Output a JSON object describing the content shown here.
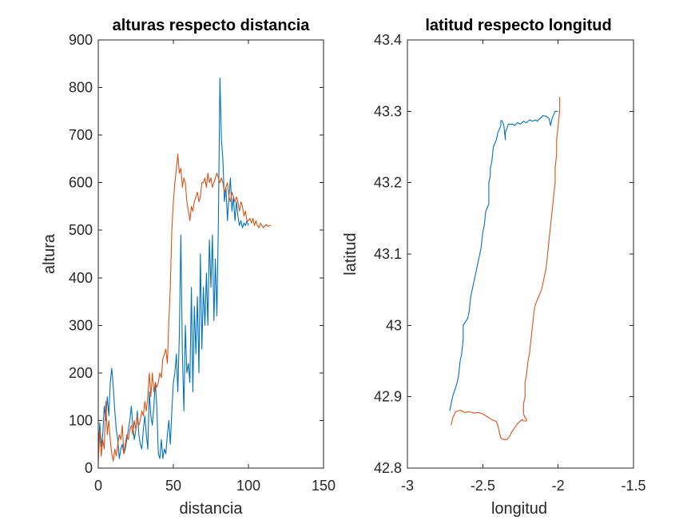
{
  "chart_data": [
    {
      "type": "line",
      "title": "alturas respecto distancia",
      "xlabel": "distancia",
      "ylabel": "altura",
      "xlim": [
        0,
        150
      ],
      "ylim": [
        0,
        900
      ],
      "xticks": [
        "0",
        "50",
        "100",
        "150"
      ],
      "yticks": [
        "0",
        "100",
        "200",
        "300",
        "400",
        "500",
        "600",
        "700",
        "800",
        "900"
      ],
      "xtick_values": [
        0,
        50,
        100,
        150
      ],
      "ytick_values": [
        0,
        100,
        200,
        300,
        400,
        500,
        600,
        700,
        800,
        900
      ],
      "grid": false,
      "series": [
        {
          "color": "#0072BD",
          "x": [
            0,
            1,
            2,
            3,
            4,
            5,
            6,
            7,
            8,
            9,
            10,
            11,
            12,
            13,
            14,
            15,
            16,
            17,
            18,
            19,
            20,
            21,
            22,
            23,
            24,
            25,
            26,
            27,
            28,
            29,
            30,
            31,
            32,
            33,
            34,
            35,
            36,
            37,
            38,
            39,
            40,
            41,
            42,
            43,
            44,
            45,
            46,
            47,
            48,
            49,
            50,
            51,
            52,
            53,
            54,
            55,
            56,
            57,
            58,
            59,
            60,
            61,
            62,
            63,
            64,
            65,
            66,
            67,
            68,
            69,
            70,
            71,
            72,
            73,
            74,
            75,
            76,
            77,
            78,
            79,
            80,
            81,
            82,
            83,
            84,
            85,
            86,
            87,
            88,
            89,
            90,
            91,
            92,
            93,
            94,
            95,
            96,
            97,
            98,
            99,
            100
          ],
          "y": [
            40,
            95,
            45,
            70,
            130,
            100,
            150,
            110,
            180,
            210,
            170,
            120,
            80,
            60,
            20,
            40,
            50,
            30,
            40,
            60,
            80,
            100,
            130,
            90,
            60,
            80,
            120,
            70,
            50,
            40,
            80,
            110,
            70,
            40,
            160,
            110,
            90,
            130,
            180,
            130,
            30,
            20,
            60,
            20,
            40,
            30,
            70,
            100,
            50,
            120,
            180,
            200,
            240,
            160,
            280,
            490,
            240,
            120,
            300,
            200,
            220,
            180,
            380,
            160,
            340,
            240,
            360,
            200,
            450,
            250,
            380,
            300,
            410,
            300,
            480,
            380,
            490,
            310,
            440,
            320,
            520,
            820,
            690,
            650,
            560,
            590,
            520,
            570,
            610,
            540,
            570,
            520,
            560,
            530,
            510,
            520,
            505,
            515,
            510,
            520,
            510
          ]
        },
        {
          "color": "#D95319",
          "x": [
            0,
            1,
            2,
            3,
            4,
            5,
            6,
            7,
            8,
            9,
            10,
            11,
            12,
            13,
            14,
            15,
            16,
            17,
            18,
            19,
            20,
            21,
            22,
            23,
            24,
            25,
            26,
            27,
            28,
            29,
            30,
            31,
            32,
            33,
            34,
            35,
            36,
            37,
            38,
            39,
            40,
            41,
            42,
            43,
            44,
            45,
            46,
            47,
            48,
            49,
            50,
            51,
            52,
            53,
            54,
            55,
            56,
            57,
            58,
            59,
            60,
            61,
            62,
            63,
            64,
            65,
            66,
            67,
            68,
            69,
            70,
            71,
            72,
            73,
            74,
            75,
            76,
            77,
            78,
            79,
            80,
            81,
            82,
            83,
            84,
            85,
            86,
            87,
            88,
            89,
            90,
            91,
            92,
            93,
            94,
            95,
            96,
            97,
            98,
            99,
            100,
            101,
            102,
            103,
            104,
            105,
            106,
            107,
            108,
            109,
            110,
            111,
            112,
            113,
            114,
            115
          ],
          "y": [
            10,
            80,
            25,
            60,
            40,
            140,
            70,
            100,
            60,
            30,
            15,
            40,
            25,
            50,
            70,
            60,
            90,
            30,
            50,
            70,
            60,
            80,
            90,
            70,
            100,
            80,
            110,
            90,
            100,
            120,
            110,
            140,
            120,
            150,
            200,
            150,
            200,
            160,
            180,
            170,
            180,
            200,
            190,
            230,
            240,
            250,
            220,
            310,
            380,
            500,
            560,
            600,
            630,
            660,
            620,
            630,
            590,
            610,
            600,
            560,
            540,
            520,
            550,
            540,
            560,
            570,
            580,
            560,
            570,
            600,
            600,
            610,
            590,
            620,
            600,
            610,
            590,
            600,
            610,
            620,
            610,
            600,
            610,
            600,
            580,
            590,
            600,
            570,
            560,
            580,
            570,
            560,
            570,
            560,
            540,
            560,
            550,
            530,
            540,
            520,
            520,
            525,
            515,
            525,
            510,
            520,
            510,
            505,
            515,
            510,
            505,
            510,
            512,
            508,
            510,
            510
          ]
        }
      ]
    },
    {
      "type": "line",
      "title": "latitud respecto longitud",
      "xlabel": "longitud",
      "ylabel": "latitud",
      "xlim": [
        -3,
        -1.5
      ],
      "ylim": [
        42.8,
        43.4
      ],
      "xticks": [
        "-3",
        "-2.5",
        "-2",
        "-1.5"
      ],
      "yticks": [
        "42.8",
        "42.9",
        "43",
        "43.1",
        "43.2",
        "43.3",
        "43.4"
      ],
      "xtick_values": [
        -3,
        -2.5,
        -2,
        -1.5
      ],
      "ytick_values": [
        42.8,
        42.9,
        43.0,
        43.1,
        43.2,
        43.3,
        43.4
      ],
      "grid": false,
      "series": [
        {
          "color": "#0072BD",
          "x": [
            -2.72,
            -2.71,
            -2.7,
            -2.7,
            -2.67,
            -2.66,
            -2.65,
            -2.64,
            -2.63,
            -2.63,
            -2.6,
            -2.59,
            -2.58,
            -2.57,
            -2.55,
            -2.54,
            -2.52,
            -2.51,
            -2.5,
            -2.49,
            -2.48,
            -2.46,
            -2.46,
            -2.45,
            -2.45,
            -2.44,
            -2.43,
            -2.41,
            -2.4,
            -2.38,
            -2.38,
            -2.37,
            -2.36,
            -2.35,
            -2.35,
            -2.33,
            -2.3,
            -2.29,
            -2.27,
            -2.25,
            -2.23,
            -2.21,
            -2.19,
            -2.17,
            -2.15,
            -2.14,
            -2.12,
            -2.1,
            -2.08,
            -2.06,
            -2.05,
            -2.04,
            -2.02,
            -2.0
          ],
          "y": [
            42.88,
            42.89,
            42.9,
            42.9,
            42.92,
            42.93,
            42.95,
            42.96,
            42.98,
            43.0,
            43.01,
            43.02,
            43.04,
            43.05,
            43.07,
            43.08,
            43.1,
            43.11,
            43.13,
            43.14,
            43.16,
            43.17,
            43.2,
            43.21,
            43.22,
            43.23,
            43.25,
            43.26,
            43.27,
            43.28,
            43.287,
            43.286,
            43.28,
            43.26,
            43.27,
            43.282,
            43.282,
            43.28,
            43.284,
            43.282,
            43.286,
            43.284,
            43.288,
            43.286,
            43.288,
            43.286,
            43.29,
            43.294,
            43.293,
            43.29,
            43.28,
            43.29,
            43.3,
            43.3
          ]
        },
        {
          "color": "#D95319",
          "x": [
            -1.99,
            -1.99,
            -2.0,
            -2.01,
            -2.01,
            -2.02,
            -2.02,
            -2.03,
            -2.04,
            -2.05,
            -2.06,
            -2.07,
            -2.08,
            -2.09,
            -2.1,
            -2.11,
            -2.13,
            -2.15,
            -2.16,
            -2.17,
            -2.18,
            -2.19,
            -2.2,
            -2.21,
            -2.22,
            -2.22,
            -2.22,
            -2.23,
            -2.23,
            -2.23,
            -2.23,
            -2.22,
            -2.21,
            -2.21,
            -2.23,
            -2.24,
            -2.25,
            -2.27,
            -2.29,
            -2.31,
            -2.32,
            -2.34,
            -2.36,
            -2.38,
            -2.39,
            -2.4,
            -2.41,
            -2.42,
            -2.44,
            -2.47,
            -2.5,
            -2.53,
            -2.56,
            -2.59,
            -2.62,
            -2.65,
            -2.68,
            -2.7,
            -2.71
          ],
          "y": [
            43.32,
            43.3,
            43.28,
            43.26,
            43.24,
            43.22,
            43.2,
            43.18,
            43.16,
            43.14,
            43.12,
            43.1,
            43.08,
            43.07,
            43.06,
            43.05,
            43.04,
            43.03,
            43.02,
            43.0,
            42.98,
            42.96,
            42.95,
            42.93,
            42.92,
            42.91,
            42.9,
            42.89,
            42.885,
            42.88,
            42.876,
            42.871,
            42.869,
            42.866,
            42.866,
            42.868,
            42.866,
            42.862,
            42.856,
            42.85,
            42.845,
            42.84,
            42.84,
            42.842,
            42.85,
            42.86,
            42.865,
            42.866,
            42.868,
            42.872,
            42.876,
            42.878,
            42.877,
            42.879,
            42.878,
            42.881,
            42.879,
            42.87,
            42.86
          ]
        }
      ]
    }
  ],
  "colors": {
    "axis": "#262626",
    "series_blue": "#0072BD",
    "series_orange": "#D95319"
  }
}
